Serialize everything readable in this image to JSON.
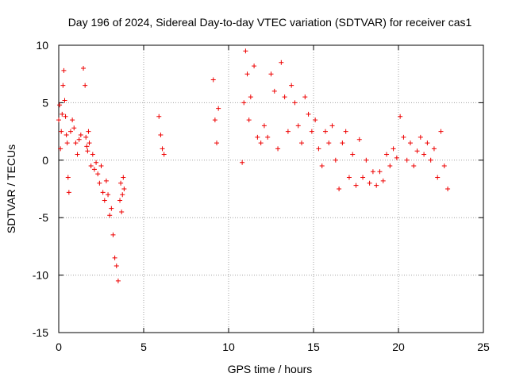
{
  "chart_data": {
    "type": "scatter",
    "title": "Day 196 of 2024, Sidereal Day-to-day VTEC variation (SDTVAR) for receiver cas1",
    "xlabel": "GPS time / hours",
    "ylabel": "SDTVAR / TECUs",
    "xlim": [
      0,
      25
    ],
    "ylim": [
      -15,
      10
    ],
    "xticks": [
      0,
      5,
      10,
      15,
      20,
      25
    ],
    "yticks": [
      -15,
      -10,
      -5,
      0,
      5,
      10
    ],
    "grid": true,
    "marker": "+",
    "color": "#ee0000",
    "series": [
      {
        "name": "SDTVAR",
        "x": [
          0.0,
          0.05,
          0.1,
          0.15,
          0.2,
          0.25,
          0.3,
          0.35,
          0.4,
          0.45,
          0.5,
          0.55,
          0.6,
          0.7,
          0.8,
          0.9,
          1.0,
          1.1,
          1.2,
          1.3,
          1.45,
          1.55,
          1.6,
          1.65,
          1.7,
          1.75,
          1.8,
          1.9,
          2.0,
          2.1,
          2.2,
          2.3,
          2.4,
          2.5,
          2.6,
          2.7,
          2.8,
          2.9,
          3.0,
          3.1,
          3.2,
          3.3,
          3.4,
          3.5,
          3.6,
          3.65,
          3.7,
          3.75,
          3.8,
          3.85,
          5.9,
          6.0,
          6.1,
          6.2,
          9.1,
          9.2,
          9.3,
          9.4,
          10.8,
          10.9,
          11.0,
          11.1,
          11.2,
          11.3,
          11.5,
          11.7,
          11.9,
          12.1,
          12.3,
          12.5,
          12.7,
          12.9,
          13.1,
          13.3,
          13.5,
          13.7,
          13.9,
          14.1,
          14.3,
          14.5,
          14.7,
          14.9,
          15.1,
          15.3,
          15.5,
          15.7,
          15.9,
          16.1,
          16.3,
          16.5,
          16.7,
          16.9,
          17.1,
          17.3,
          17.5,
          17.7,
          17.9,
          18.1,
          18.3,
          18.5,
          18.7,
          18.9,
          19.1,
          19.3,
          19.5,
          19.7,
          19.9,
          20.1,
          20.3,
          20.5,
          20.7,
          20.9,
          21.1,
          21.3,
          21.5,
          21.7,
          21.9,
          22.1,
          22.3,
          22.5,
          22.7,
          22.9
        ],
        "y": [
          3.5,
          4.8,
          1.0,
          2.5,
          4.0,
          6.5,
          7.8,
          5.2,
          3.8,
          2.2,
          1.5,
          -1.5,
          -2.8,
          2.5,
          3.5,
          2.8,
          1.5,
          0.5,
          1.8,
          2.2,
          8.0,
          6.5,
          2.0,
          1.2,
          0.8,
          2.5,
          1.5,
          -0.5,
          0.5,
          -0.8,
          -0.2,
          -1.2,
          -2.0,
          -0.5,
          -2.8,
          -3.5,
          -1.8,
          -3.0,
          -4.8,
          -4.2,
          -6.5,
          -8.5,
          -9.2,
          -10.5,
          -3.5,
          -2.0,
          -4.5,
          -3.0,
          -1.5,
          -2.5,
          3.8,
          2.2,
          1.0,
          0.5,
          7.0,
          3.5,
          1.5,
          4.5,
          -0.2,
          5.0,
          9.5,
          7.5,
          3.5,
          5.5,
          8.2,
          2.0,
          1.5,
          3.0,
          2.0,
          7.5,
          6.0,
          1.0,
          8.5,
          5.5,
          2.5,
          6.5,
          5.0,
          3.0,
          1.5,
          5.5,
          4.0,
          2.5,
          3.5,
          1.0,
          -0.5,
          2.5,
          1.5,
          3.0,
          0.0,
          -2.5,
          1.5,
          2.5,
          -1.5,
          0.5,
          -2.2,
          1.8,
          -1.5,
          0.0,
          -2.0,
          -1.0,
          -2.2,
          -1.0,
          -1.8,
          0.5,
          -0.5,
          1.0,
          0.2,
          3.8,
          2.0,
          0.0,
          1.5,
          -0.5,
          0.8,
          2.0,
          0.5,
          1.5,
          0.0,
          1.0,
          -1.5,
          2.5,
          -0.5,
          -2.5
        ]
      }
    ]
  }
}
